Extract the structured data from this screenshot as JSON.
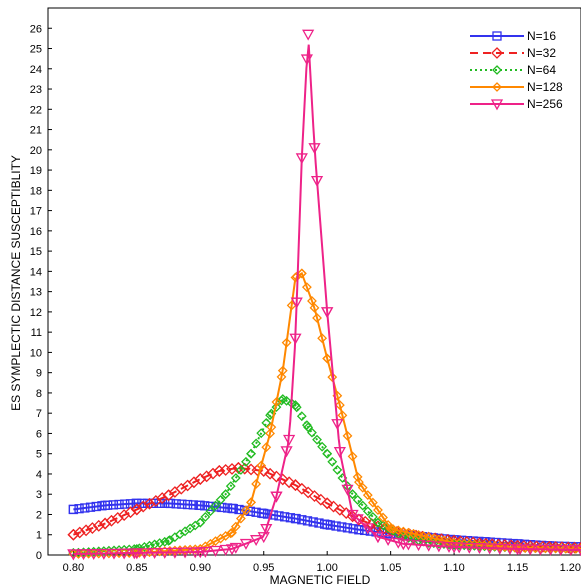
{
  "chart_data": {
    "type": "line",
    "title": "",
    "xlabel": "MAGNETIC FIELD",
    "ylabel": "ES SYMPLECTIC DISTANCE SUSCEPTIBLITY",
    "xlim": [
      0.78,
      1.2
    ],
    "ylim": [
      0,
      27
    ],
    "x_ticks": [
      "0.80",
      "0.85",
      "0.90",
      "0.95",
      "1.00",
      "1.05",
      "1.10",
      "1.15",
      "1.20"
    ],
    "y_ticks": [
      "0",
      "1",
      "2",
      "3",
      "4",
      "5",
      "6",
      "7",
      "8",
      "9",
      "10",
      "11",
      "12",
      "13",
      "14",
      "15",
      "16",
      "17",
      "18",
      "19",
      "20",
      "21",
      "22",
      "23",
      "24",
      "25",
      "26"
    ],
    "grid": false,
    "legend_position": "top-right",
    "series": [
      {
        "name": "N=16",
        "color": "#3333ee",
        "marker": "square",
        "dash": "solid",
        "x": [
          0.8,
          0.825,
          0.85,
          0.875,
          0.9,
          0.925,
          0.95,
          0.975,
          1.0,
          1.025,
          1.05,
          1.075,
          1.1,
          1.125,
          1.15,
          1.175,
          1.2
        ],
        "y": [
          2.25,
          2.45,
          2.55,
          2.55,
          2.45,
          2.3,
          2.05,
          1.8,
          1.5,
          1.25,
          1.05,
          0.9,
          0.75,
          0.65,
          0.55,
          0.45,
          0.4
        ]
      },
      {
        "name": "N=32",
        "color": "#ee2222",
        "marker": "diamond",
        "dash": "dashed",
        "x": [
          0.8,
          0.825,
          0.85,
          0.875,
          0.9,
          0.915,
          0.93,
          0.95,
          0.975,
          1.0,
          1.025,
          1.05,
          1.075,
          1.1,
          1.125,
          1.15,
          1.175,
          1.2
        ],
        "y": [
          1.0,
          1.55,
          2.25,
          2.95,
          3.75,
          4.15,
          4.3,
          4.15,
          3.45,
          2.55,
          1.75,
          1.2,
          0.9,
          0.7,
          0.55,
          0.45,
          0.4,
          0.35
        ]
      },
      {
        "name": "N=64",
        "color": "#22bb22",
        "marker": "diamond-open",
        "dash": "dotted",
        "x": [
          0.8,
          0.85,
          0.875,
          0.9,
          0.92,
          0.94,
          0.955,
          0.965,
          0.975,
          0.985,
          1.0,
          1.02,
          1.04,
          1.06,
          1.08,
          1.1,
          1.15,
          1.2
        ],
        "y": [
          0.1,
          0.3,
          0.7,
          1.6,
          3.0,
          5.0,
          6.9,
          7.7,
          7.4,
          6.3,
          5.0,
          3.0,
          1.6,
          0.9,
          0.6,
          0.5,
          0.35,
          0.3
        ]
      },
      {
        "name": "N=128",
        "color": "#ff8800",
        "marker": "diamond-open",
        "dash": "solid",
        "x": [
          0.8,
          0.85,
          0.9,
          0.925,
          0.94,
          0.955,
          0.965,
          0.975,
          0.98,
          0.99,
          1.0,
          1.01,
          1.025,
          1.05,
          1.1,
          1.15,
          1.2
        ],
        "y": [
          0.05,
          0.1,
          0.3,
          1.1,
          2.6,
          6.0,
          9.1,
          13.7,
          13.9,
          12.2,
          9.7,
          7.4,
          3.6,
          1.3,
          0.6,
          0.35,
          0.3
        ]
      },
      {
        "name": "N=256",
        "color": "#ee2288",
        "marker": "triangle-down",
        "dash": "solid",
        "x": [
          0.8,
          0.85,
          0.9,
          0.925,
          0.95,
          0.96,
          0.97,
          0.975,
          0.98,
          0.985,
          0.99,
          1.0,
          1.01,
          1.02,
          1.04,
          1.06,
          1.1,
          1.15,
          1.2
        ],
        "y": [
          0.05,
          0.1,
          0.15,
          0.3,
          0.9,
          2.9,
          5.7,
          10.7,
          19.6,
          25.7,
          20.1,
          12.0,
          5.1,
          2.0,
          0.9,
          0.55,
          0.4,
          0.3,
          0.25
        ]
      }
    ]
  }
}
